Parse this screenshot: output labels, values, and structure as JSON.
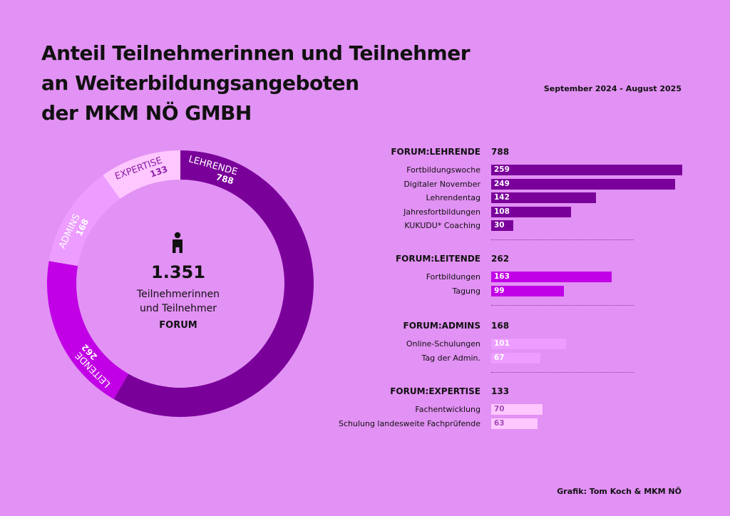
{
  "title": {
    "line1": "Anteil Teilnehmerinnen und Teilnehmer",
    "line2": "an Weiterbildungsangeboten",
    "line3": "der MKM NÖ GMBH"
  },
  "period": "September 2024 - August 2025",
  "credit": "Grafik: Tom Koch & MKM NÖ",
  "center": {
    "total": "1.351",
    "line1": "Teilnehmerinnen",
    "line2": "und Teilnehmer",
    "line3": "FORUM"
  },
  "colors": {
    "background": "#e291f4",
    "lehrende": "#7a009a",
    "leitende": "#c100e6",
    "admins": "#ec9dff",
    "expertise": "#ffc7ff",
    "bar_lehrende": "#7a009a",
    "bar_leitende": "#c100e6",
    "bar_admins": "#ec9dff",
    "bar_expertise": "#ffc7ff"
  },
  "chart_data": [
    {
      "type": "pie",
      "title": "Teilnehmerinnen und Teilnehmer FORUM",
      "total": 1351,
      "slices": [
        {
          "label": "LEHRENDE",
          "value": 788
        },
        {
          "label": "LEITENDE",
          "value": 262
        },
        {
          "label": "ADMINS",
          "value": 168
        },
        {
          "label": "EXPERTISE",
          "value": 133
        }
      ]
    },
    {
      "type": "bar",
      "orientation": "horizontal",
      "xlim": [
        0,
        259
      ],
      "groups": [
        {
          "name": "FORUM:LEHRENDE",
          "total": 788,
          "categories": [
            "Fortbildungswoche",
            "Digitaler November",
            "Lehrendentag",
            "Jahresfortbildungen",
            "KUKUDU* Coaching"
          ],
          "values": [
            259,
            249,
            142,
            108,
            30
          ]
        },
        {
          "name": "FORUM:LEITENDE",
          "total": 262,
          "categories": [
            "Fortbildungen",
            "Tagung"
          ],
          "values": [
            163,
            99
          ]
        },
        {
          "name": "FORUM:ADMINS",
          "total": 168,
          "categories": [
            "Online-Schulungen",
            "Tag der Admin."
          ],
          "values": [
            101,
            67
          ]
        },
        {
          "name": "FORUM:EXPERTISE",
          "total": 133,
          "categories": [
            "Fachentwicklung",
            "Schulung landesweite Fachprüfende"
          ],
          "values": [
            70,
            63
          ]
        }
      ]
    }
  ]
}
